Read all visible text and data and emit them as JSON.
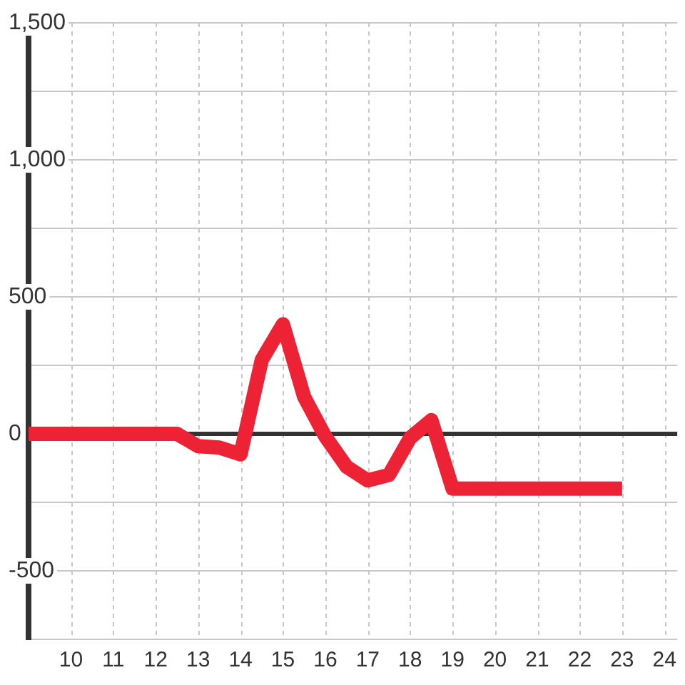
{
  "chart_data": {
    "type": "line",
    "x": [
      9,
      9.5,
      10,
      10.5,
      11,
      11.5,
      12,
      12.5,
      13,
      13.5,
      14,
      14.5,
      15,
      15.5,
      16,
      16.5,
      17,
      17.5,
      18,
      18.5,
      19,
      19.5,
      20,
      20.5,
      21,
      21.5,
      22,
      22.5,
      23
    ],
    "series": [
      {
        "color": "#ee2235",
        "values": [
          0,
          0,
          0,
          0,
          0,
          0,
          0,
          0,
          -45,
          -50,
          -75,
          270,
          400,
          135,
          -10,
          -120,
          -170,
          -150,
          -15,
          50,
          -200,
          -200,
          -200,
          -200,
          -200,
          -200,
          -200,
          -200,
          -200
        ]
      }
    ],
    "xlim": [
      9,
      24.3
    ],
    "xticks": [
      10,
      11,
      12,
      13,
      14,
      15,
      16,
      17,
      18,
      19,
      20,
      21,
      22,
      23,
      24
    ],
    "ylim": [
      -750,
      1500
    ],
    "yticks": [
      {
        "value": -750,
        "label": null
      },
      -500,
      {
        "value": -250,
        "label": null
      },
      0,
      {
        "value": 250,
        "label": null
      },
      500,
      {
        "value": 750,
        "label": null
      },
      {
        "value": 1000,
        "label": "1,000"
      },
      {
        "value": 1250,
        "label": null
      },
      {
        "value": 1500,
        "label": "1,500"
      }
    ],
    "grid": true,
    "ref_lines": [
      {
        "axis": "y",
        "value": 0,
        "color": "#333333"
      }
    ],
    "marker": "none",
    "line_style": "solid"
  }
}
